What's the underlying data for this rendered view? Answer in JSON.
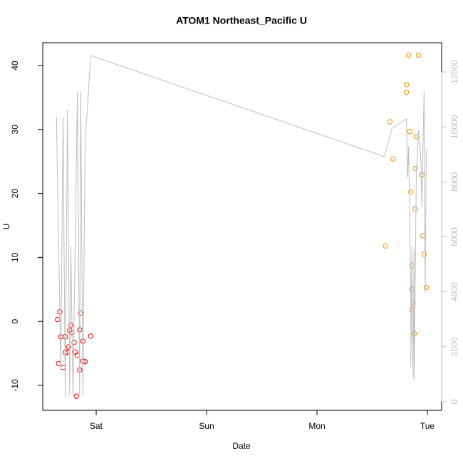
{
  "chart_data": {
    "type": "scatter",
    "title": "ATOM1 Northeast_Pacific U",
    "xlabel": "Date",
    "ylabel": "U",
    "xlim": [
      -0.484,
      3.129
    ],
    "xticks": [
      {
        "value": 0,
        "label": "Sat"
      },
      {
        "value": 1,
        "label": "Sun"
      },
      {
        "value": 2,
        "label": "Mon"
      },
      {
        "value": 3,
        "label": "Tue"
      }
    ],
    "ylim": [
      -13.9,
      43.56
    ],
    "yticks": [
      -10,
      0,
      10,
      20,
      30,
      40
    ],
    "y2lim": [
      -311,
      13063
    ],
    "y2ticks": [
      0,
      2000,
      4000,
      6000,
      8000,
      10000,
      12000
    ],
    "y2color": "#bebebe",
    "series": [
      {
        "color": "#ff0000",
        "x": [
          -0.35,
          -0.33,
          -0.34,
          -0.32,
          -0.3,
          -0.28,
          -0.28,
          -0.26,
          -0.25,
          -0.24,
          -0.23,
          -0.22,
          -0.2,
          -0.19,
          -0.18,
          -0.17,
          -0.15,
          -0.15,
          -0.14,
          -0.12,
          -0.12,
          -0.1,
          -0.05
        ],
        "values": [
          0.3,
          1.5,
          -6.6,
          -2.4,
          -7.2,
          -4.9,
          -2.4,
          -4.8,
          -4.0,
          -1.4,
          -0.6,
          -1.7,
          -3.3,
          -4.8,
          -11.7,
          -5.3,
          -1.3,
          -7.6,
          1.3,
          -6.2,
          -3.1,
          -6.3,
          -2.3
        ]
      },
      {
        "color": "#ff8c00",
        "x": [
          2.62,
          2.66,
          2.69,
          2.81,
          2.81,
          2.83,
          2.84,
          2.85,
          2.86,
          2.86,
          2.86,
          2.87,
          2.88,
          2.89,
          2.89,
          2.9,
          2.92,
          2.95,
          2.96,
          2.97,
          2.99
        ],
        "values": [
          11.8,
          31.2,
          25.4,
          35.8,
          37.0,
          41.6,
          29.7,
          20.2,
          8.7,
          5.0,
          1.8,
          2.9,
          -1.9,
          17.6,
          23.9,
          28.9,
          41.6,
          22.9,
          13.4,
          10.5,
          5.3
        ]
      },
      {
        "type": "line",
        "axis": "y2",
        "color": "#bebebe",
        "x": [
          -0.36,
          -0.32,
          -0.3,
          -0.28,
          -0.26,
          -0.24,
          -0.23,
          -0.21,
          -0.17,
          -0.15,
          -0.14,
          -0.12,
          -0.1,
          -0.08,
          -0.05,
          2.61,
          2.68,
          2.81,
          2.82,
          2.83,
          2.85,
          2.85,
          2.86,
          2.87,
          2.88,
          2.88,
          2.9,
          2.92,
          2.94,
          2.95,
          2.97,
          2.98,
          2.99
        ],
        "values": [
          10370,
          1140,
          10340,
          180,
          10630,
          230,
          5680,
          230,
          11280,
          230,
          11280,
          230,
          9690,
          10600,
          12600,
          8920,
          9950,
          10290,
          8140,
          9310,
          3730,
          1270,
          5650,
          880,
          5550,
          780,
          8350,
          9900,
          8870,
          7100,
          11300,
          3990,
          9180
        ]
      }
    ]
  }
}
